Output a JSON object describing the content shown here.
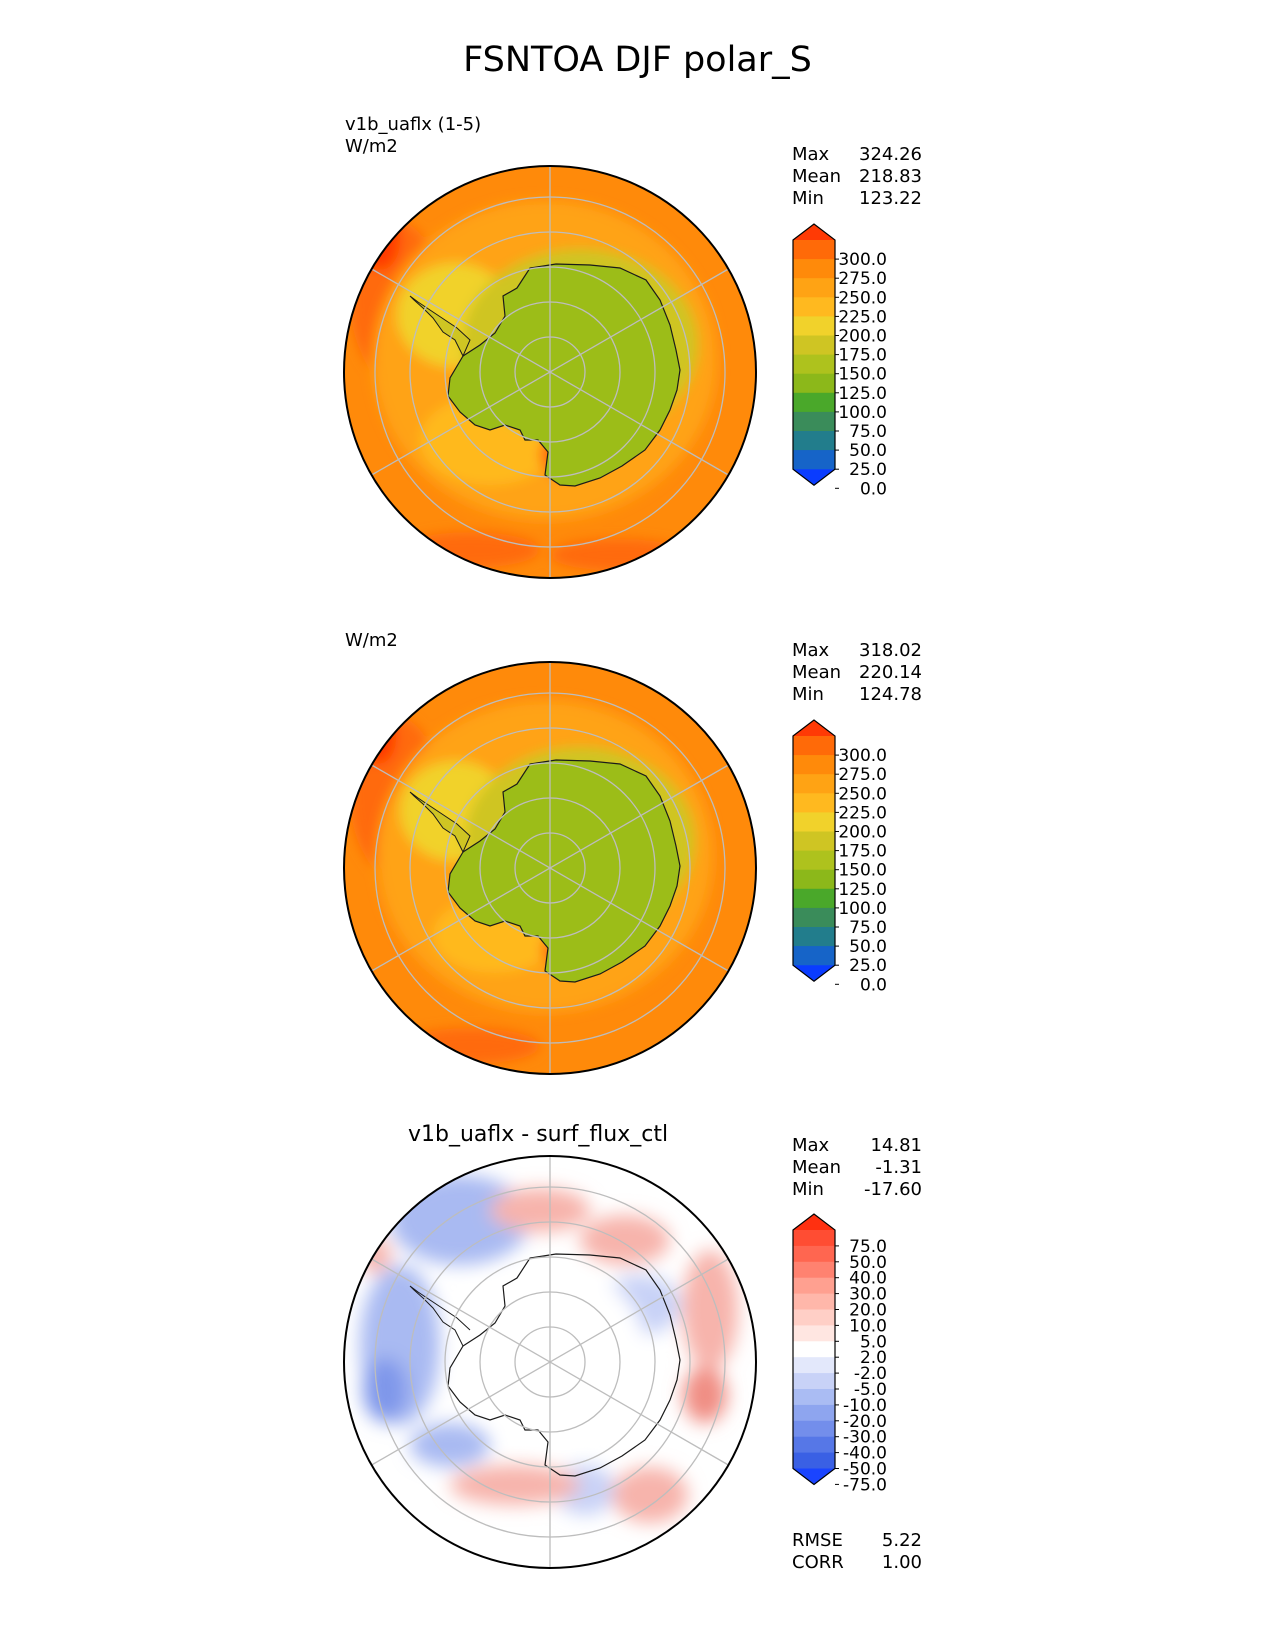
{
  "figure_title": "FSNTOA DJF polar_S",
  "colors": {
    "ocean": "#ff8a0a",
    "ocean_warm": "#ff6a08",
    "sea_ice": "#ffb31c",
    "ice_edge": "#f1d22b",
    "land": "#9cbd18",
    "coast": "#1a1a1a",
    "grid": "#bdbdbd",
    "diff_bg": "#ffffff",
    "diff_neg": "#a9baf2",
    "diff_neg_strong": "#7f97ea",
    "diff_pos": "#f7b4ac",
    "diff_pos_strong": "#f08e84"
  },
  "panels": [
    {
      "title": "",
      "name_label": "v1b_uaflx (1-5)",
      "units": "W/m2",
      "stats": [
        {
          "k": "Max",
          "v": "324.26"
        },
        {
          "k": "Mean",
          "v": "218.83"
        },
        {
          "k": "Min",
          "v": "123.22"
        }
      ]
    },
    {
      "title": "",
      "name_label": "",
      "units": "W/m2",
      "stats": [
        {
          "k": "Max",
          "v": "318.02"
        },
        {
          "k": "Mean",
          "v": "220.14"
        },
        {
          "k": "Min",
          "v": "124.78"
        }
      ]
    },
    {
      "title": "v1b_uaflx - surf_flux_ctl",
      "name_label": "",
      "units": "",
      "stats": [
        {
          "k": "Max",
          "v": "14.81"
        },
        {
          "k": "Mean",
          "v": "-1.31"
        },
        {
          "k": "Min",
          "v": "-17.60"
        }
      ],
      "metrics": [
        {
          "k": "RMSE",
          "v": "5.22"
        },
        {
          "k": "CORR",
          "v": "1.00"
        }
      ]
    }
  ],
  "colorbar_field": {
    "levels": [
      "300.0",
      "275.0",
      "250.0",
      "225.0",
      "200.0",
      "175.0",
      "150.0",
      "125.0",
      "100.0",
      "75.0",
      "50.0",
      "25.0",
      "0.0"
    ],
    "colors": [
      "#ff3a05",
      "#ff6a08",
      "#ff8a0a",
      "#ffa314",
      "#ffb91f",
      "#f1d22b",
      "#cfc523",
      "#aec21d",
      "#8cb81a",
      "#4aa82a",
      "#3a8c5a",
      "#227d8c",
      "#1664c8",
      "#0a3cff"
    ]
  },
  "colorbar_diff": {
    "levels": [
      "75.0",
      "50.0",
      "40.0",
      "30.0",
      "20.0",
      "10.0",
      "5.0",
      "2.0",
      "-2.0",
      "-5.0",
      "-10.0",
      "-20.0",
      "-30.0",
      "-40.0",
      "-50.0",
      "-75.0"
    ],
    "colors": [
      "#ff3010",
      "#ff4d33",
      "#ff6650",
      "#ff8270",
      "#ffa090",
      "#ffb7aa",
      "#ffcfc6",
      "#ffe6e1",
      "#ffffff",
      "#e3e8fb",
      "#c8d2f7",
      "#aabcf3",
      "#8ea5ef",
      "#738eeb",
      "#5677e7",
      "#3a60e4",
      "#1a44ff"
    ]
  },
  "chart_data": [
    {
      "type": "heatmap",
      "title": "v1b_uaflx (1-5)",
      "variable": "FSNTOA",
      "season": "DJF",
      "region": "polar_S",
      "units": "W/m2",
      "projection": "south polar stereographic",
      "stats": {
        "max": 324.26,
        "mean": 218.83,
        "min": 123.22
      },
      "colorbar_levels": [
        0,
        25,
        50,
        75,
        100,
        125,
        150,
        175,
        200,
        225,
        250,
        275,
        300
      ],
      "colorbar_extend": "both"
    },
    {
      "type": "heatmap",
      "title": "",
      "variable": "FSNTOA",
      "season": "DJF",
      "region": "polar_S",
      "units": "W/m2",
      "projection": "south polar stereographic",
      "stats": {
        "max": 318.02,
        "mean": 220.14,
        "min": 124.78
      },
      "colorbar_levels": [
        0,
        25,
        50,
        75,
        100,
        125,
        150,
        175,
        200,
        225,
        250,
        275,
        300
      ],
      "colorbar_extend": "both"
    },
    {
      "type": "heatmap",
      "title": "v1b_uaflx - surf_flux_ctl",
      "variable": "FSNTOA difference",
      "season": "DJF",
      "region": "polar_S",
      "units": "W/m2",
      "projection": "south polar stereographic",
      "stats": {
        "max": 14.81,
        "mean": -1.31,
        "min": -17.6,
        "rmse": 5.22,
        "corr": 1.0
      },
      "colorbar_levels": [
        -75,
        -50,
        -40,
        -30,
        -20,
        -10,
        -5,
        -2,
        2,
        5,
        10,
        20,
        30,
        40,
        50,
        75
      ],
      "colorbar_extend": "both"
    }
  ]
}
